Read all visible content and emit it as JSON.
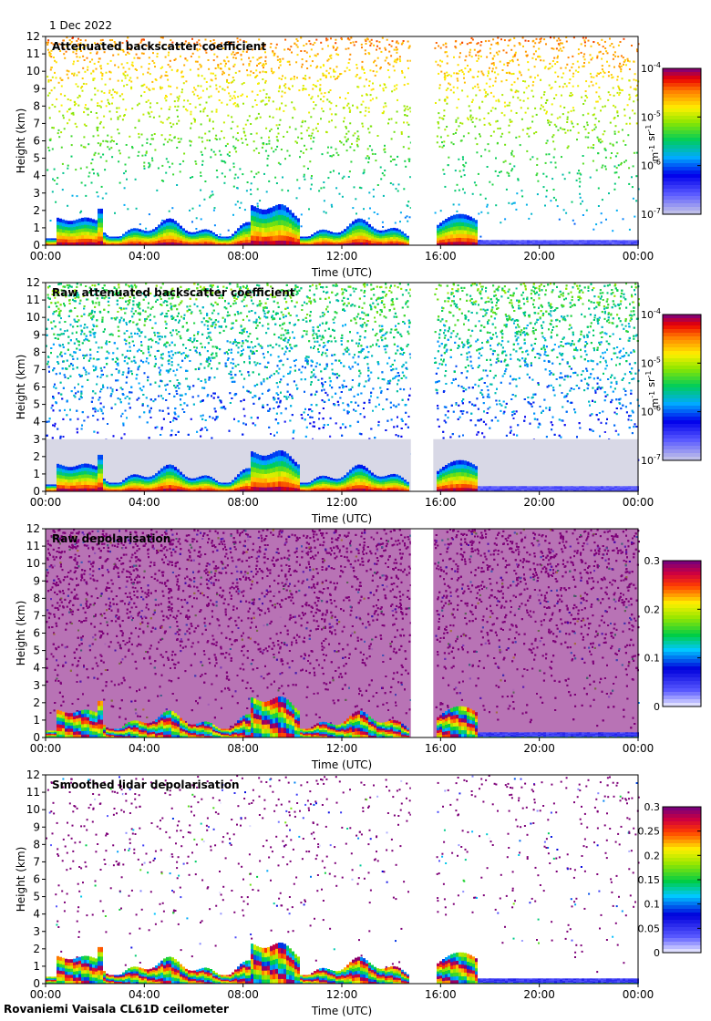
{
  "header": {
    "date": "1 Dec 2022"
  },
  "footer": {
    "site": "Rovaniemi Vaisala CL61D ceilometer"
  },
  "chart_data": [
    {
      "type": "heatmap",
      "title": "Attenuated backscatter coefficient",
      "xlabel": "Time (UTC)",
      "ylabel": "Height (km)",
      "x_ticks": [
        "00:00",
        "04:00",
        "08:00",
        "12:00",
        "16:00",
        "20:00",
        "00:00"
      ],
      "xlim_hours": [
        0,
        24
      ],
      "ylim": [
        0,
        12
      ],
      "y_ticks": [
        "0",
        "1",
        "2",
        "3",
        "4",
        "5",
        "6",
        "7",
        "8",
        "9",
        "10",
        "11",
        "12"
      ],
      "data_gap_hours": [
        14.8,
        15.7
      ],
      "colorbar": {
        "scale": "log",
        "range": [
          1e-07,
          0.0001
        ],
        "units": "m-1 sr-1",
        "ticks": [
          "10^-7",
          "10^-6",
          "10^-5",
          "10^-4"
        ]
      },
      "noise_style": "sparse"
    },
    {
      "type": "heatmap",
      "title": "Raw attenuated backscatter coefficient",
      "xlabel": "Time (UTC)",
      "ylabel": "Height (km)",
      "x_ticks": [
        "00:00",
        "04:00",
        "08:00",
        "12:00",
        "16:00",
        "20:00",
        "00:00"
      ],
      "xlim_hours": [
        0,
        24
      ],
      "ylim": [
        0,
        12
      ],
      "y_ticks": [
        "0",
        "1",
        "2",
        "3",
        "4",
        "5",
        "6",
        "7",
        "8",
        "9",
        "10",
        "11",
        "12"
      ],
      "data_gap_hours": [
        14.8,
        15.7
      ],
      "colorbar": {
        "scale": "log",
        "range": [
          1e-07,
          0.0001
        ],
        "units": "m-1 sr-1",
        "ticks": [
          "10^-7",
          "10^-6",
          "10^-5",
          "10^-4"
        ]
      },
      "noise_style": "dense"
    },
    {
      "type": "heatmap",
      "title": "Raw depolarisation",
      "xlabel": "Time (UTC)",
      "ylabel": "Height (km)",
      "x_ticks": [
        "00:00",
        "04:00",
        "08:00",
        "12:00",
        "16:00",
        "20:00",
        "00:00"
      ],
      "xlim_hours": [
        0,
        24
      ],
      "ylim": [
        0,
        12
      ],
      "y_ticks": [
        "0",
        "1",
        "2",
        "3",
        "4",
        "5",
        "6",
        "7",
        "8",
        "9",
        "10",
        "11",
        "12"
      ],
      "data_gap_hours": [
        14.8,
        15.7
      ],
      "colorbar": {
        "scale": "linear",
        "range": [
          0,
          0.3
        ],
        "units": "",
        "ticks": [
          "0",
          "0.1",
          "0.2",
          "0.3"
        ]
      },
      "noise_style": "depol-dense"
    },
    {
      "type": "heatmap",
      "title": "Smoothed lidar depolarisation",
      "xlabel": "Time (UTC)",
      "ylabel": "Height (km)",
      "x_ticks": [
        "00:00",
        "04:00",
        "08:00",
        "12:00",
        "16:00",
        "20:00",
        "00:00"
      ],
      "xlim_hours": [
        0,
        24
      ],
      "ylim": [
        0,
        12
      ],
      "y_ticks": [
        "0",
        "1",
        "2",
        "3",
        "4",
        "5",
        "6",
        "7",
        "8",
        "9",
        "10",
        "11",
        "12"
      ],
      "data_gap_hours": [
        14.8,
        15.7
      ],
      "colorbar": {
        "scale": "linear",
        "range": [
          0,
          0.3
        ],
        "units": "",
        "ticks": [
          "0",
          "0.05",
          "0.1",
          "0.15",
          "0.2",
          "0.25",
          "0.3"
        ]
      },
      "noise_style": "depol-sparse"
    }
  ]
}
